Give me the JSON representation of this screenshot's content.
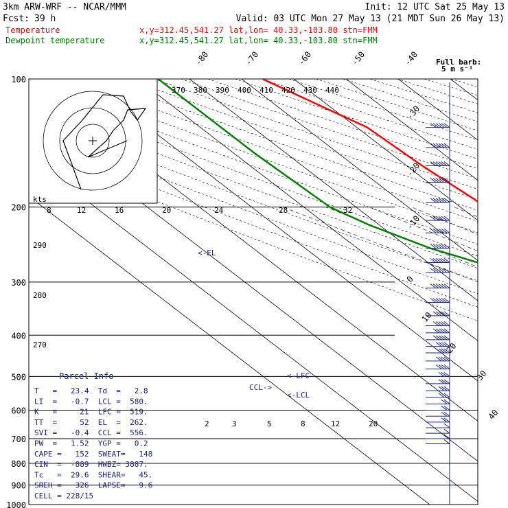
{
  "header": {
    "line1_left": "3km ARW-WRF -- NCAR/MMM",
    "line1_right": "Init: 12 UTC Sat 25 May 13",
    "line2_left": "Fcst:",
    "line2_fcst": "39 h",
    "line2_right": "Valid: 03 UTC Mon 27 May 13 (21 MDT Sun 26 May 13)",
    "temp_label": "Temperature",
    "temp_loc": "x,y=312.45,541.27   lat,lon= 40.33,-103.80  stn=FMM",
    "dew_label": "Dewpoint temperature",
    "dew_loc": "x,y=312.45,541.27   lat,lon= 40.33,-103.80  stn=FMM",
    "barb_title": "Full barb:",
    "barb_unit": "5 m s⁻¹"
  },
  "colors": {
    "temperature": "#ff0000",
    "dewpoint": "#008000",
    "index_text": "#1a237e",
    "barb": "#1a237e"
  },
  "chart_data": {
    "type": "line",
    "subtype": "skew-T log-P",
    "pressure_ticks": [
      "100",
      "200",
      "300",
      "400",
      "500",
      "600",
      "700",
      "800",
      "900",
      "1000"
    ],
    "pressure_values": [
      100,
      200,
      300,
      400,
      500,
      600,
      700,
      800,
      900,
      1000
    ],
    "skew_temp_ticks": [
      "-80",
      "-70",
      "-60",
      "-50",
      "-40",
      "-30",
      "-20",
      "-10",
      "0",
      "10",
      "20",
      "30",
      "40"
    ],
    "theta_ticks": [
      "370",
      "380",
      "390",
      "400",
      "410",
      "420",
      "430",
      "440"
    ],
    "theta_left_ticks": [
      "290",
      "280",
      "270"
    ],
    "mixing_ratio_ticks": [
      "2",
      "3",
      "5",
      "8",
      "12",
      "20"
    ],
    "hodo_speed_ticks": [
      "8",
      "12",
      "16",
      "20",
      "24",
      "28",
      "32"
    ],
    "hodo_units": "kts",
    "series": [
      {
        "name": "Temperature",
        "color": "#ff0000",
        "points": [
          [
            100,
            -66
          ],
          [
            130,
            -58
          ],
          [
            160,
            -57
          ],
          [
            200,
            -55
          ],
          [
            230,
            -52
          ],
          [
            250,
            -46
          ],
          [
            300,
            -37
          ],
          [
            350,
            -28
          ],
          [
            400,
            -21
          ],
          [
            450,
            -14
          ],
          [
            500,
            -8
          ],
          [
            550,
            -2
          ],
          [
            600,
            4
          ],
          [
            650,
            9
          ],
          [
            700,
            13
          ],
          [
            750,
            17
          ],
          [
            800,
            20
          ],
          [
            830,
            23.4
          ],
          [
            850,
            21
          ]
        ]
      },
      {
        "name": "Dewpoint temperature",
        "color": "#008000",
        "points": [
          [
            100,
            -86
          ],
          [
            150,
            -86
          ],
          [
            200,
            -85
          ],
          [
            220,
            -82
          ],
          [
            250,
            -76
          ],
          [
            300,
            -63
          ],
          [
            350,
            -52
          ],
          [
            400,
            -43
          ],
          [
            450,
            -27
          ],
          [
            500,
            -20
          ],
          [
            550,
            -14
          ],
          [
            600,
            -9
          ],
          [
            650,
            -7
          ],
          [
            700,
            -3
          ],
          [
            750,
            0
          ],
          [
            800,
            1
          ],
          [
            830,
            2.8
          ],
          [
            850,
            2.2
          ]
        ]
      }
    ],
    "annotations": [
      "<-EL",
      "<-LFC",
      "<-LCL",
      "CCL->"
    ]
  },
  "parcel": {
    "title": "Parcel Info",
    "rows": [
      "T   =   23.4  Td  =   2.8",
      "LI  =   -0.7  LCL =  580.",
      "K   =     21  LFC =  519.",
      "TT  =     52  EL  =  262.",
      "SVI =   -0.4  CCL =  556.",
      "PW  =   1.52  YGP =   0.2",
      "CAPE =   152  SWEAT=   148",
      "CIN  =  -889  HWBZ= 3887.",
      "Tc   =  29.6  SHEAR=   45.",
      "SREH =   326  LAPSE=   9.6",
      "CELL = 228/15"
    ]
  },
  "wind_profile": [
    [
      130,
      70
    ],
    [
      145,
      70
    ],
    [
      160,
      70
    ],
    [
      175,
      70
    ],
    [
      195,
      70
    ],
    [
      215,
      65
    ],
    [
      230,
      65
    ],
    [
      250,
      65
    ],
    [
      270,
      60
    ],
    [
      285,
      60
    ],
    [
      310,
      55
    ],
    [
      335,
      55
    ],
    [
      360,
      50
    ],
    [
      380,
      50
    ],
    [
      395,
      45
    ],
    [
      410,
      45
    ],
    [
      425,
      40
    ],
    [
      440,
      40
    ],
    [
      460,
      35
    ],
    [
      480,
      35
    ],
    [
      500,
      30
    ],
    [
      520,
      30
    ],
    [
      540,
      25
    ],
    [
      560,
      25
    ],
    [
      580,
      20
    ],
    [
      600,
      20
    ],
    [
      620,
      15
    ],
    [
      640,
      15
    ],
    [
      660,
      10
    ],
    [
      680,
      10
    ],
    [
      700,
      10
    ],
    [
      720,
      5
    ]
  ]
}
